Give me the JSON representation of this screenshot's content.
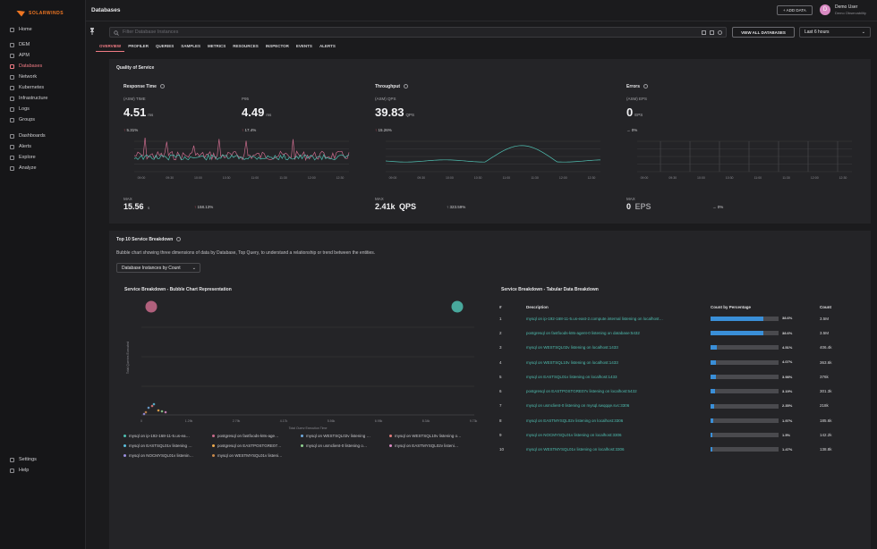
{
  "brand": "SOLARWINDS",
  "header": {
    "title": "Databases",
    "add_data": "+ ADD DATA",
    "user_initial": "D",
    "user_name": "Demo User",
    "user_org": "Demo Observability"
  },
  "sidebar": {
    "items": [
      {
        "label": "Home"
      },
      {
        "label": "DEM"
      },
      {
        "label": "APM"
      },
      {
        "label": "Databases",
        "active": true
      },
      {
        "label": "Network"
      },
      {
        "label": "Kubernetes"
      },
      {
        "label": "Infrastructure"
      },
      {
        "label": "Logs"
      },
      {
        "label": "Groups"
      },
      {
        "label": "Dashboards"
      },
      {
        "label": "Alerts"
      },
      {
        "label": "Explore"
      },
      {
        "label": "Analyze"
      }
    ],
    "footer": [
      {
        "label": "Settings"
      },
      {
        "label": "Help"
      }
    ]
  },
  "filter": {
    "placeholder": "Filter Database Instances",
    "view_all": "VIEW ALL DATABASES",
    "time_range": "Last 6 hours"
  },
  "tabs": [
    "OVERVIEW",
    "PROFILER",
    "QUERIES",
    "SAMPLES",
    "METRICS",
    "RESOURCES",
    "INSPECTOR",
    "EVENTS",
    "ALERTS"
  ],
  "qos": {
    "title": "Quality of Service",
    "response_time": {
      "label": "Response Time",
      "sub1": "(ASM) TIME",
      "val1": "4.51",
      "unit1": "ms",
      "change1": "5.31%",
      "sub2": "P95",
      "val2": "4.49",
      "unit2": "ms",
      "change2": "17.4%",
      "max_label": "MAX",
      "max_val": "15.56",
      "max_unit": "s",
      "max_change": "158.13%"
    },
    "throughput": {
      "label": "Throughput",
      "sub": "(ASM) QPS",
      "val": "39.83",
      "unit": "QPS",
      "change": "15.26%",
      "max_label": "MAX",
      "max_val": "2.41k",
      "max_unit": "QPS",
      "max_change": "323.59%"
    },
    "errors": {
      "label": "Errors",
      "sub": "(ASM) EPS",
      "val": "0",
      "unit": "EPS",
      "change": "0%",
      "max_label": "MAX",
      "max_val": "0",
      "max_unit": "EPS",
      "max_change": "0%"
    },
    "x_ticks": [
      "09:00",
      "09:30",
      "10:00",
      "10:30",
      "11:00",
      "11:30",
      "12:00",
      "12:30"
    ],
    "colors": {
      "rt_line1": "#4fbfb1",
      "rt_line2": "#c96b8c",
      "tp_line": "#4fbfb1",
      "err_line": "#888888"
    }
  },
  "breakdown": {
    "title": "Top 10 Service Breakdown",
    "description": "Bubble chart showing three dimensions of data by Database, Top Query, to understand a relationship or trend between the entities.",
    "dropdown": "Database Instances by Count",
    "bubble_title": "Service Breakdown - Bubble Chart Representation",
    "table_title": "Service Breakdown - Tabular Data Breakdown",
    "bubble_ylabel": "Total Queries Executed",
    "bubble_xlabel": "Total Query Execution Time",
    "bubble_xticks": [
      "0",
      "1.29k",
      "2.79k",
      "4.17k",
      "5.56k",
      "6.95k",
      "8.34k",
      "9.73k"
    ],
    "columns": [
      "#",
      "Description",
      "Count by Percentage",
      "Count"
    ],
    "rows": [
      {
        "n": "1",
        "desc": "mysql on ip-192-168-11-5.us-east-2.compute.internal listening on localhost…",
        "pct": 38.6,
        "pct_label": "38.6%",
        "count": "3.5M"
      },
      {
        "n": "2",
        "desc": "postgresql on fastfoods-k8s-agent-0 listening on database:5432",
        "pct": 38.6,
        "pct_label": "38.6%",
        "count": "3.5M"
      },
      {
        "n": "3",
        "desc": "mysql on WESTSQL02v listening on localhost:1433",
        "pct": 4.51,
        "pct_label": "4.51%",
        "count": "406.4k"
      },
      {
        "n": "4",
        "desc": "mysql on WESTSQL10v listening on localhost:1433",
        "pct": 4.07,
        "pct_label": "4.07%",
        "count": "363.6k"
      },
      {
        "n": "5",
        "desc": "mysql on EASTSQL01v listening on localhost:1433",
        "pct": 3.98,
        "pct_label": "3.98%",
        "count": "376k"
      },
      {
        "n": "6",
        "desc": "postgresql on EASTPOSTGRE07v listening on localhost:5432",
        "pct": 3.19,
        "pct_label": "3.19%",
        "count": "301.3k"
      },
      {
        "n": "7",
        "desc": "mysql on usmclient-0 listening on mysql.swqqqe.svc:3306",
        "pct": 2.35,
        "pct_label": "2.35%",
        "count": "218k"
      },
      {
        "n": "8",
        "desc": "mysql on EASTMYSQL02v listening on localhost:3306",
        "pct": 1.97,
        "pct_label": "1.97%",
        "count": "185.6k"
      },
      {
        "n": "9",
        "desc": "mysql on NOCMYSQL01v listening on localhost:3306",
        "pct": 1.5,
        "pct_label": "1.5%",
        "count": "142.2k"
      },
      {
        "n": "10",
        "desc": "mysql on WESTMYSQL01v listening on localhost:3306",
        "pct": 1.47,
        "pct_label": "1.47%",
        "count": "138.8k"
      }
    ],
    "legend": [
      {
        "label": "mysql on ip-192-168-11-5.us-ea…",
        "color": "#4fbfb1"
      },
      {
        "label": "postgresql on fastfoods-k8s-age…",
        "color": "#c96b8c"
      },
      {
        "label": "mysql on WESTSQL02v listening …",
        "color": "#6fa8dc"
      },
      {
        "label": "mysql on WESTSQL10v listening o…",
        "color": "#e07a7a"
      },
      {
        "label": "mysql on EASTSQL01v listening …",
        "color": "#5bc0de"
      },
      {
        "label": "postgresql on EASTPOSTGRE07…",
        "color": "#f0ad4e"
      },
      {
        "label": "mysql on usmclient-0 listening o…",
        "color": "#8fd18f"
      },
      {
        "label": "mysql on EASTMYSQL02v listeni…",
        "color": "#d98ac3"
      },
      {
        "label": "mysql on NOCMYSQL01v listenin…",
        "color": "#9b8fe0"
      },
      {
        "label": "mysql on WESTMYSQL01v listeni…",
        "color": "#c98a4b"
      }
    ]
  }
}
